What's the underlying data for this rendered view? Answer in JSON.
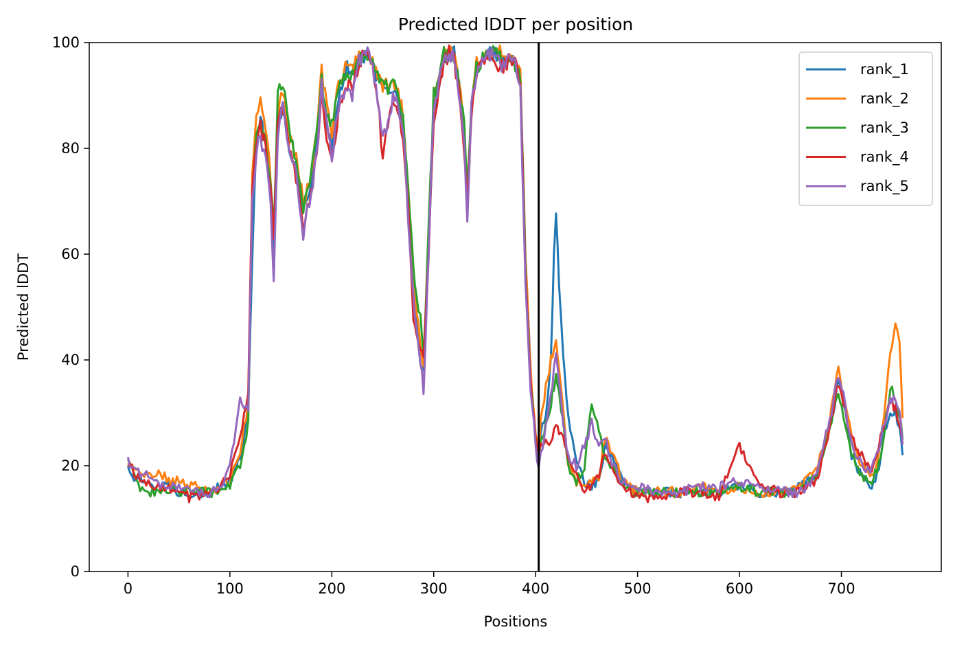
{
  "chart_data": {
    "type": "line",
    "title": "Predicted lDDT per position",
    "xlabel": "Positions",
    "ylabel": "Predicted lDDT",
    "xlim": [
      -38,
      798
    ],
    "ylim": [
      0,
      100
    ],
    "xticks": [
      "0",
      "100",
      "200",
      "300",
      "400",
      "500",
      "600",
      "700"
    ],
    "yticks": [
      "0",
      "20",
      "40",
      "60",
      "80",
      "100"
    ],
    "grid": false,
    "legend_position": "top-right",
    "vline_x": 403,
    "series": [
      {
        "name": "rank_1",
        "color": "#1f77b4",
        "x": [
          0,
          10,
          20,
          30,
          40,
          50,
          60,
          70,
          80,
          90,
          100,
          110,
          118,
          122,
          126,
          130,
          135,
          140,
          143,
          147,
          152,
          158,
          165,
          172,
          178,
          185,
          190,
          195,
          200,
          205,
          210,
          215,
          220,
          225,
          230,
          235,
          240,
          245,
          250,
          255,
          260,
          265,
          270,
          275,
          280,
          283,
          287,
          290,
          295,
          300,
          305,
          310,
          315,
          320,
          325,
          330,
          333,
          337,
          342,
          348,
          355,
          360,
          365,
          370,
          375,
          380,
          385,
          390,
          395,
          400,
          403,
          405,
          410,
          415,
          418,
          420,
          423,
          427,
          432,
          440,
          448,
          455,
          462,
          468,
          475,
          485,
          500,
          520,
          540,
          560,
          580,
          600,
          620,
          640,
          660,
          675,
          685,
          692,
          697,
          702,
          710,
          720,
          728,
          735,
          742,
          748,
          753,
          757,
          760
        ],
        "y": [
          19,
          17,
          17,
          16,
          16,
          15,
          15,
          15,
          15,
          16,
          17,
          21,
          30,
          60,
          82,
          85,
          82,
          72,
          62,
          85,
          88,
          80,
          76,
          68,
          72,
          80,
          92,
          85,
          80,
          88,
          92,
          95,
          94,
          96,
          97,
          98,
          96,
          93,
          92,
          90,
          92,
          90,
          85,
          70,
          55,
          48,
          42,
          38,
          60,
          88,
          92,
          97,
          98,
          98,
          92,
          80,
          70,
          88,
          95,
          97,
          98,
          98,
          97,
          96,
          97,
          96,
          93,
          60,
          38,
          25,
          20,
          27,
          30,
          40,
          60,
          68,
          55,
          40,
          30,
          20,
          17,
          16,
          17,
          24,
          22,
          17,
          15,
          15,
          15,
          15,
          15,
          16,
          15,
          15,
          16,
          18,
          26,
          30,
          36,
          32,
          22,
          18,
          16,
          18,
          26,
          30,
          30,
          27,
          22
        ]
      },
      {
        "name": "rank_2",
        "color": "#ff7f0e",
        "x": [
          0,
          10,
          20,
          30,
          40,
          50,
          60,
          70,
          80,
          90,
          100,
          110,
          118,
          122,
          126,
          130,
          135,
          140,
          143,
          147,
          152,
          158,
          165,
          172,
          178,
          185,
          190,
          195,
          200,
          205,
          210,
          215,
          220,
          225,
          230,
          235,
          240,
          245,
          250,
          255,
          260,
          265,
          270,
          275,
          280,
          283,
          287,
          290,
          295,
          300,
          305,
          310,
          315,
          320,
          325,
          330,
          333,
          337,
          342,
          348,
          355,
          360,
          365,
          370,
          375,
          380,
          385,
          390,
          395,
          400,
          403,
          405,
          410,
          415,
          418,
          420,
          423,
          427,
          432,
          440,
          448,
          455,
          462,
          468,
          475,
          485,
          500,
          520,
          540,
          560,
          580,
          600,
          620,
          640,
          660,
          675,
          685,
          692,
          697,
          702,
          710,
          720,
          728,
          735,
          742,
          748,
          753,
          757,
          760
        ],
        "y": [
          20,
          19,
          18,
          19,
          17,
          17,
          16,
          16,
          15,
          16,
          17,
          22,
          32,
          75,
          86,
          90,
          85,
          75,
          65,
          86,
          91,
          82,
          78,
          70,
          73,
          82,
          95,
          88,
          82,
          90,
          94,
          96,
          95,
          97,
          98,
          98,
          96,
          94,
          92,
          92,
          93,
          91,
          86,
          72,
          55,
          49,
          43,
          38,
          62,
          89,
          93,
          98,
          98,
          98,
          93,
          82,
          70,
          88,
          96,
          97,
          98,
          98,
          98,
          97,
          97,
          96,
          94,
          60,
          38,
          26,
          22,
          28,
          35,
          40,
          42,
          44,
          38,
          30,
          20,
          17,
          16,
          17,
          18,
          25,
          23,
          17,
          15,
          15,
          15,
          16,
          15,
          16,
          15,
          15,
          16,
          19,
          25,
          33,
          38,
          34,
          25,
          20,
          18,
          20,
          30,
          42,
          46,
          44,
          29
        ]
      },
      {
        "name": "rank_3",
        "color": "#2ca02c",
        "x": [
          0,
          10,
          20,
          30,
          40,
          50,
          60,
          70,
          80,
          90,
          100,
          110,
          118,
          122,
          126,
          130,
          135,
          140,
          143,
          147,
          152,
          158,
          165,
          172,
          178,
          185,
          190,
          195,
          200,
          205,
          210,
          215,
          220,
          225,
          230,
          235,
          240,
          245,
          250,
          255,
          260,
          265,
          270,
          275,
          280,
          283,
          287,
          290,
          295,
          300,
          305,
          310,
          315,
          320,
          325,
          330,
          333,
          337,
          342,
          348,
          355,
          360,
          365,
          370,
          375,
          380,
          385,
          390,
          395,
          400,
          403,
          405,
          410,
          415,
          418,
          420,
          423,
          427,
          432,
          440,
          448,
          455,
          462,
          468,
          475,
          485,
          500,
          520,
          540,
          560,
          580,
          600,
          620,
          640,
          660,
          675,
          685,
          692,
          697,
          702,
          710,
          720,
          728,
          735,
          742,
          748,
          753,
          757,
          760
        ],
        "y": [
          22,
          16,
          15,
          15,
          15,
          15,
          15,
          15,
          15,
          15,
          16,
          20,
          28,
          72,
          83,
          86,
          82,
          73,
          64,
          90,
          92,
          84,
          78,
          68,
          74,
          84,
          93,
          86,
          84,
          89,
          93,
          95,
          94,
          96,
          97,
          98,
          97,
          94,
          93,
          91,
          94,
          90,
          85,
          72,
          58,
          52,
          48,
          40,
          65,
          90,
          92,
          98,
          98,
          97,
          92,
          84,
          72,
          90,
          95,
          97,
          98,
          98,
          97,
          96,
          97,
          96,
          93,
          58,
          36,
          25,
          20,
          24,
          28,
          32,
          35,
          38,
          34,
          28,
          20,
          17,
          20,
          32,
          26,
          22,
          20,
          16,
          15,
          15,
          15,
          15,
          15,
          16,
          15,
          15,
          15,
          18,
          24,
          30,
          34,
          30,
          22,
          18,
          17,
          19,
          26,
          35,
          32,
          30,
          25
        ]
      },
      {
        "name": "rank_4",
        "color": "#d62728",
        "x": [
          0,
          10,
          20,
          30,
          40,
          50,
          60,
          70,
          80,
          90,
          100,
          110,
          118,
          122,
          126,
          130,
          135,
          140,
          143,
          147,
          152,
          158,
          165,
          172,
          178,
          185,
          190,
          195,
          200,
          205,
          210,
          215,
          220,
          225,
          230,
          235,
          240,
          245,
          250,
          255,
          260,
          265,
          270,
          275,
          280,
          283,
          287,
          290,
          295,
          300,
          305,
          310,
          315,
          320,
          325,
          330,
          333,
          337,
          342,
          348,
          355,
          360,
          365,
          370,
          375,
          380,
          385,
          390,
          395,
          400,
          403,
          405,
          410,
          415,
          418,
          420,
          423,
          427,
          432,
          440,
          448,
          455,
          462,
          468,
          475,
          485,
          500,
          520,
          540,
          560,
          580,
          600,
          620,
          640,
          660,
          675,
          685,
          692,
          697,
          702,
          710,
          720,
          728,
          735,
          742,
          748,
          753,
          757,
          760
        ],
        "y": [
          20,
          18,
          17,
          16,
          16,
          15,
          14,
          14,
          15,
          16,
          18,
          26,
          34,
          74,
          80,
          84,
          80,
          72,
          62,
          84,
          88,
          80,
          74,
          65,
          70,
          78,
          90,
          82,
          78,
          85,
          90,
          92,
          92,
          95,
          97,
          98,
          96,
          90,
          78,
          85,
          90,
          88,
          82,
          68,
          48,
          44,
          42,
          40,
          60,
          86,
          90,
          96,
          98,
          97,
          90,
          80,
          70,
          86,
          94,
          96,
          97,
          97,
          95,
          96,
          97,
          96,
          92,
          56,
          36,
          25,
          22,
          24,
          25,
          24,
          26,
          28,
          26,
          25,
          22,
          18,
          15,
          16,
          18,
          23,
          20,
          16,
          14,
          14,
          15,
          15,
          14,
          24,
          16,
          15,
          15,
          17,
          24,
          30,
          36,
          32,
          25,
          22,
          19,
          22,
          28,
          32,
          31,
          28,
          24
        ]
      },
      {
        "name": "rank_5",
        "color": "#9467bd",
        "x": [
          0,
          10,
          20,
          30,
          40,
          50,
          60,
          70,
          80,
          90,
          100,
          110,
          118,
          122,
          126,
          130,
          135,
          140,
          143,
          147,
          152,
          158,
          165,
          172,
          178,
          185,
          190,
          195,
          200,
          205,
          210,
          215,
          220,
          225,
          230,
          235,
          240,
          245,
          250,
          255,
          260,
          265,
          270,
          275,
          280,
          283,
          287,
          290,
          295,
          300,
          305,
          310,
          315,
          320,
          325,
          330,
          333,
          337,
          342,
          348,
          355,
          360,
          365,
          370,
          375,
          380,
          385,
          390,
          395,
          400,
          403,
          405,
          410,
          415,
          418,
          420,
          423,
          427,
          432,
          440,
          448,
          455,
          462,
          468,
          475,
          485,
          500,
          520,
          540,
          560,
          580,
          600,
          620,
          640,
          660,
          675,
          685,
          692,
          697,
          702,
          710,
          720,
          728,
          735,
          742,
          748,
          753,
          757,
          760
        ],
        "y": [
          21,
          19,
          18,
          17,
          16,
          16,
          15,
          15,
          15,
          16,
          20,
          32,
          31,
          70,
          80,
          82,
          78,
          70,
          55,
          82,
          88,
          80,
          75,
          64,
          70,
          78,
          92,
          84,
          78,
          86,
          90,
          92,
          90,
          96,
          97,
          98,
          96,
          88,
          82,
          84,
          90,
          88,
          84,
          66,
          52,
          46,
          40,
          34,
          60,
          88,
          92,
          96,
          98,
          97,
          90,
          80,
          66,
          88,
          95,
          96,
          98,
          98,
          96,
          96,
          97,
          96,
          92,
          54,
          35,
          24,
          19,
          22,
          28,
          33,
          38,
          42,
          36,
          28,
          22,
          20,
          24,
          28,
          24,
          26,
          20,
          17,
          16,
          15,
          15,
          16,
          16,
          17,
          16,
          15,
          15,
          18,
          26,
          32,
          37,
          33,
          24,
          20,
          19,
          22,
          28,
          33,
          32,
          30,
          24
        ]
      }
    ]
  }
}
